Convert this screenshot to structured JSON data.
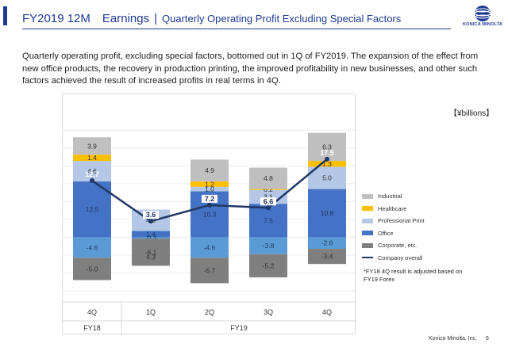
{
  "header": {
    "title": "FY2019 12M　Earnings",
    "separator": "|",
    "subtitle": "Quarterly Operating Profit Excluding Special Factors"
  },
  "logo": {
    "text": "KONICA MINOLTA"
  },
  "lead_text": "Quarterly operating profit, excluding special factors, bottomed out in 1Q of FY2019. The expansion of the effect from new office products, the recovery in production printing, the improved profitability in new businesses, and other such factors achieved the result of increased profits in real terms in 4Q.",
  "unit_label": "【¥billions】",
  "legend": [
    {
      "name": "Industrial",
      "key": "industrial"
    },
    {
      "name": "Healthcare",
      "key": "healthcare"
    },
    {
      "name": "Professional Print",
      "key": "professional_print"
    },
    {
      "name": "Office",
      "key": "office"
    },
    {
      "name": "Corporate, etc.",
      "key": "corporate"
    },
    {
      "name": "Company overall",
      "key": "overall"
    }
  ],
  "note": "*FY18 4Q result is adjusted based on FY19 Forex",
  "footer": {
    "company": "Konica Minolta, Inc.",
    "page": "6"
  },
  "colors": {
    "industrial": "#bfbfbf",
    "healthcare": "#ffc000",
    "professional_print": "#b4c7e7",
    "office": "#4472c4",
    "corporate_upper": "#5b9bd5",
    "corporate_lower": "#7f7f7f",
    "overall": "#1f3864",
    "header": "#1f3a93"
  },
  "chart_data": {
    "type": "bar",
    "stacked": true,
    "categories": [
      "4Q",
      "1Q",
      "2Q",
      "3Q",
      "4Q"
    ],
    "category_groups": [
      {
        "label": "FY18",
        "span": 1
      },
      {
        "label": "FY19",
        "span": 4
      }
    ],
    "series": [
      {
        "name": "Office",
        "values": [
          12.5,
          1.4,
          10.3,
          7.5,
          10.8
        ]
      },
      {
        "name": "Professional Print",
        "values": [
          4.6,
          4.8,
          1.0,
          3.1,
          5.0
        ]
      },
      {
        "name": "Healthcare",
        "values": [
          1.4,
          0.0,
          1.2,
          0.2,
          1.3
        ]
      },
      {
        "name": "Industrial",
        "values": [
          3.9,
          0.0,
          4.9,
          4.8,
          6.3
        ]
      },
      {
        "name": "Corporate, etc.",
        "values": [
          -4.6,
          -0.3,
          -4.6,
          -3.8,
          -2.6
        ]
      },
      {
        "name": "Corporate, etc.",
        "values": [
          -5.0,
          -6.1,
          -5.7,
          -5.2,
          -3.4
        ]
      }
    ],
    "extra_labels": [
      [],
      [
        "4.3"
      ],
      [],
      [],
      []
    ],
    "line": {
      "name": "Company overall",
      "values": [
        12.7,
        3.6,
        7.2,
        6.6,
        17.5
      ]
    },
    "ylim": [
      -12,
      26
    ],
    "grid": true,
    "legend_position": "right"
  }
}
